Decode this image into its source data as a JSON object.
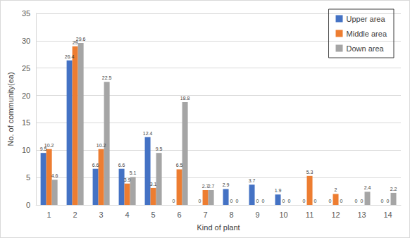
{
  "chart_data": {
    "type": "bar",
    "x_label": "Kind of plant",
    "y_label": "No. of community(ea)",
    "categories": [
      "1",
      "2",
      "3",
      "4",
      "5",
      "6",
      "7",
      "8",
      "9",
      "10",
      "11",
      "12",
      "13",
      "14"
    ],
    "series": [
      {
        "name": "Upper area",
        "color": "#4472c4",
        "values": [
          9.5,
          26.4,
          6.6,
          6.6,
          12.4,
          0,
          0,
          2.9,
          3.7,
          1.9,
          0,
          0,
          0,
          0
        ]
      },
      {
        "name": "Middle area",
        "color": "#ed7d31",
        "values": [
          10.2,
          29,
          10.2,
          3.9,
          3.1,
          6.5,
          2.7,
          0,
          0,
          0,
          5.3,
          2,
          0,
          0
        ]
      },
      {
        "name": "Down area",
        "color": "#a5a5a5",
        "values": [
          4.6,
          29.6,
          22.5,
          5.1,
          9.5,
          18.8,
          2.7,
          0,
          0,
          0,
          0,
          0,
          2.4,
          2.2
        ]
      }
    ],
    "ylim": [
      0,
      35
    ],
    "yticks": [
      0,
      5,
      10,
      15,
      20,
      25,
      30,
      35
    ],
    "grid": true,
    "legend": "top-right",
    "data_labels": true
  }
}
